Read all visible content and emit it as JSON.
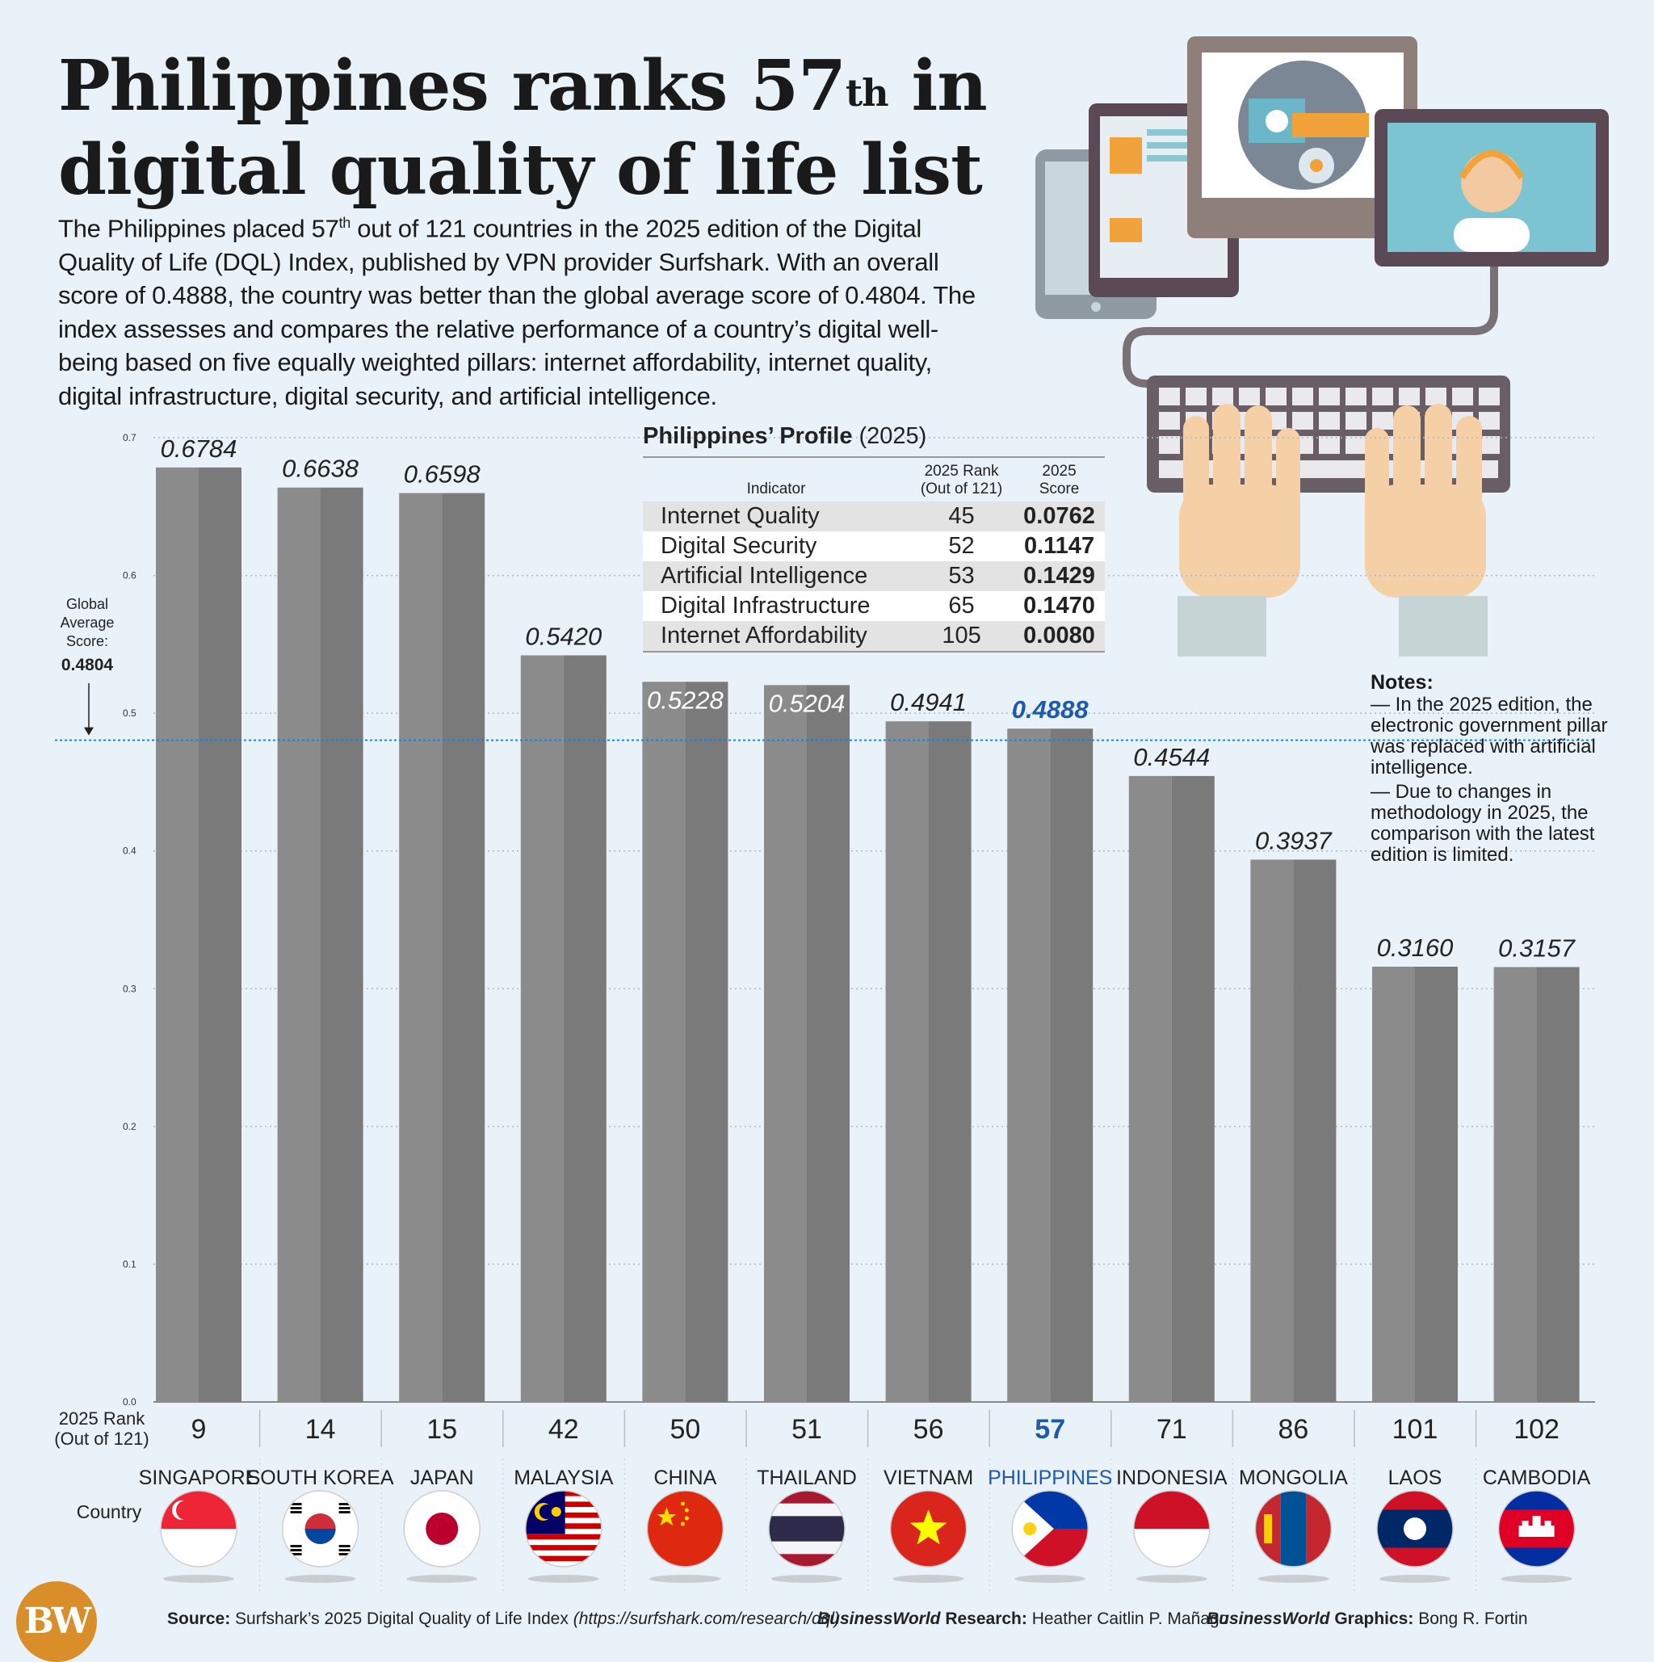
{
  "header": {
    "title_line1": "Philippines ranks 57",
    "title_sup": "th",
    "title_rest": " in",
    "title_line2": "digital quality of life list",
    "intro_a": "The Philippines placed 57",
    "intro_sup": "th",
    "intro_b": " out of 121 countries in the 2025 edition of the Digital Quality of Life (DQL) Index, published by VPN provider Surfshark. With an overall score of 0.4888, the country was better than the global average score of 0.4804. The index assesses and compares the relative performance of a country’s digital well-being based on five equally weighted pillars: internet affordability, internet quality, digital infrastructure, digital security, and artificial intelligence."
  },
  "profile": {
    "title_bold": "Philippines’ Profile",
    "title_year": " (2025)",
    "col_indicator": "Indicator",
    "col_rank_1": "2025 Rank",
    "col_rank_2": "(Out of 121)",
    "col_score_1": "2025",
    "col_score_2": "Score",
    "rows": [
      {
        "indicator": "Internet Quality",
        "rank": "45",
        "score": "0.0762"
      },
      {
        "indicator": "Digital Security",
        "rank": "52",
        "score": "0.1147"
      },
      {
        "indicator": "Artificial Intelligence",
        "rank": "53",
        "score": "0.1429"
      },
      {
        "indicator": "Digital Infrastructure",
        "rank": "65",
        "score": "0.1470"
      },
      {
        "indicator": "Internet Affordability",
        "rank": "105",
        "score": "0.0080"
      }
    ]
  },
  "notes": {
    "heading": "Notes:",
    "note1": "— In the 2025 edition, the electronic government pillar was replaced with artificial intelligence.",
    "note2": "— Due to changes in methodology in 2025, the comparison with the latest edition is limited."
  },
  "chart_data": {
    "type": "bar",
    "categories": [
      "SINGAPORE",
      "SOUTH KOREA",
      "JAPAN",
      "MALAYSIA",
      "CHINA",
      "THAILAND",
      "VIETNAM",
      "PHILIPPINES",
      "INDONESIA",
      "MONGOLIA",
      "LAOS",
      "CAMBODIA"
    ],
    "values": [
      0.6784,
      0.6638,
      0.6598,
      0.542,
      0.5228,
      0.5204,
      0.4941,
      0.4888,
      0.4544,
      0.3937,
      0.316,
      0.3157
    ],
    "value_labels": [
      "0.6784",
      "0.6638",
      "0.6598",
      "0.5420",
      "0.5228",
      "0.5204",
      "0.4941",
      "0.4888",
      "0.4544",
      "0.3937",
      "0.3160",
      "0.3157"
    ],
    "ranks": [
      "9",
      "14",
      "15",
      "42",
      "50",
      "51",
      "56",
      "57",
      "71",
      "86",
      "101",
      "102"
    ],
    "highlight": "PHILIPPINES",
    "highlight_color": "#1e5aa8",
    "bar_color": "#8b8b8b",
    "ylim": [
      0,
      0.7
    ],
    "yticks": [
      "0.0",
      "0.1",
      "0.2",
      "0.3",
      "0.4",
      "0.5",
      "0.6",
      "0.7"
    ],
    "grid": true,
    "rank_label_1": "2025 Rank",
    "rank_label_2": "(Out of 121)",
    "country_label": "Country",
    "average": {
      "value": 0.4804,
      "label_1": "Global",
      "label_2": "Average",
      "label_3": "Score:",
      "label_value": "0.4804"
    },
    "flags": [
      "singapore-flag",
      "south-korea-flag",
      "japan-flag",
      "malaysia-flag",
      "china-flag",
      "thailand-flag",
      "vietnam-flag",
      "philippines-flag",
      "indonesia-flag",
      "mongolia-flag",
      "laos-flag",
      "cambodia-flag"
    ]
  },
  "footer": {
    "source_label": "Source:",
    "source_text": " Surfshark’s 2025 Digital Quality of Life Index ",
    "source_url": "(https://surfshark.com/research/dql)",
    "research_brand": "BusinessWorld",
    "research_label": " Research:",
    "research_name": " Heather Caitlin P. Mañago",
    "graphics_brand": "BusinessWorld",
    "graphics_label": " Graphics:",
    "graphics_name": " Bong R. Fortin",
    "logo": "BW"
  }
}
